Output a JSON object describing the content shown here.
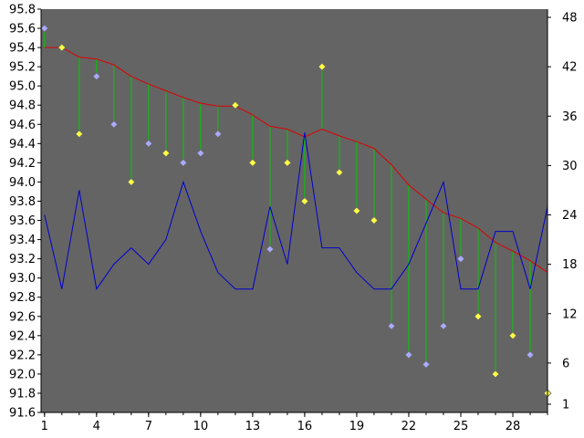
{
  "colors": {
    "plot_background": "#646464",
    "page_background": "#ffffff",
    "axis_line": "#000000",
    "ref_line": "#dd0000",
    "volume_line": "#0000cc",
    "stem": "#00cc00",
    "diamond_yellow": "#ffff44",
    "diamond_blue": "#aaaaff",
    "diamond_outline": "#666666"
  },
  "chart_data": {
    "type": "line",
    "title": "",
    "xlabel": "",
    "ylabel": "",
    "x": [
      1,
      2,
      3,
      4,
      5,
      6,
      7,
      8,
      9,
      10,
      11,
      12,
      13,
      14,
      15,
      16,
      17,
      18,
      19,
      20,
      21,
      22,
      23,
      24,
      25,
      26,
      27,
      28,
      29,
      30
    ],
    "x_ticks": [
      "1",
      "4",
      "7",
      "10",
      "13",
      "16",
      "19",
      "22",
      "25",
      "28"
    ],
    "x_tick_values": [
      1,
      4,
      7,
      10,
      13,
      16,
      19,
      22,
      25,
      28
    ],
    "ylim_left": [
      91.6,
      95.8
    ],
    "y_ticks_left": [
      "91.6",
      "91.8",
      "92.0",
      "92.2",
      "92.4",
      "92.6",
      "92.8",
      "93.0",
      "93.2",
      "93.4",
      "93.6",
      "93.8",
      "94.0",
      "94.2",
      "94.4",
      "94.6",
      "94.8",
      "95.0",
      "95.2",
      "95.4",
      "95.6",
      "95.8"
    ],
    "ylim_right": [
      0,
      49
    ],
    "y_ticks_right": [
      "1",
      "6",
      "12",
      "18",
      "24",
      "30",
      "36",
      "42",
      "48"
    ],
    "series": [
      {
        "type": "line",
        "axis": "left",
        "color": "#dd0000",
        "values": [
          95.4,
          95.4,
          95.3,
          95.28,
          95.22,
          95.1,
          95.02,
          94.95,
          94.88,
          94.82,
          94.79,
          94.79,
          94.7,
          94.58,
          94.55,
          94.47,
          94.55,
          94.48,
          94.42,
          94.35,
          94.18,
          93.97,
          93.82,
          93.68,
          93.62,
          93.52,
          93.37,
          93.28,
          93.18,
          93.06
        ]
      },
      {
        "type": "line",
        "axis": "right",
        "color": "#0000cc",
        "values": [
          24,
          15,
          27,
          15,
          18,
          20,
          18,
          21,
          28,
          22,
          17,
          15,
          15,
          25,
          18,
          34,
          20,
          20,
          17,
          15,
          15,
          18,
          23,
          28,
          15,
          15,
          22,
          22,
          15,
          25
        ]
      },
      {
        "type": "scatter",
        "axis": "left",
        "marker": "diamond",
        "values": [
          95.6,
          95.4,
          94.5,
          95.1,
          94.6,
          94.0,
          94.4,
          94.3,
          94.2,
          94.3,
          94.5,
          94.8,
          94.2,
          93.3,
          94.2,
          93.8,
          95.2,
          94.1,
          93.7,
          93.6,
          92.5,
          92.2,
          92.1,
          92.5,
          93.2,
          92.6,
          92.0,
          92.4,
          92.2,
          91.8
        ],
        "marker_colors": [
          "blue",
          "yellow",
          "yellow",
          "blue",
          "blue",
          "yellow",
          "blue",
          "yellow",
          "blue",
          "blue",
          "blue",
          "yellow",
          "yellow",
          "blue",
          "yellow",
          "yellow",
          "yellow",
          "yellow",
          "yellow",
          "yellow",
          "blue",
          "blue",
          "blue",
          "blue",
          "blue",
          "yellow",
          "yellow",
          "yellow",
          "blue",
          "yellow"
        ]
      }
    ],
    "grid": false,
    "legend": "none"
  }
}
